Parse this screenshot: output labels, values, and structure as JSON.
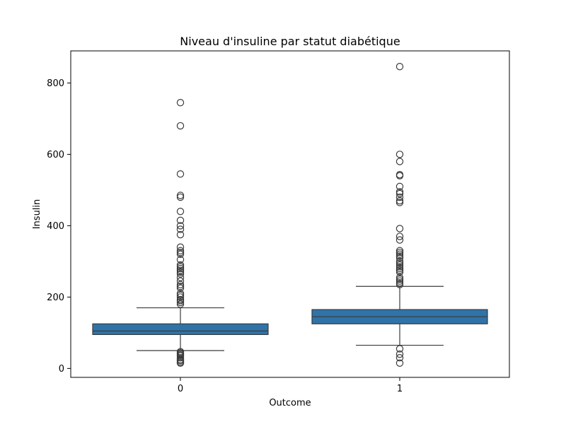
{
  "chart_data": {
    "type": "boxplot",
    "title": "Niveau d'insuline par statut diabétique",
    "xlabel": "Outcome",
    "ylabel": "Insulin",
    "categories": [
      "0",
      "1"
    ],
    "ylim": [
      -25,
      890
    ],
    "yticks": [
      0,
      200,
      400,
      600,
      800
    ],
    "box_color": "#2f73a8",
    "edge_color": "#3b3b3b",
    "boxes": [
      {
        "category": "0",
        "whisker_low": 50,
        "q1": 95,
        "median": 105,
        "q3": 125,
        "whisker_high": 170,
        "outliers": [
          15,
          18,
          22,
          25,
          30,
          35,
          38,
          41,
          44,
          47,
          180,
          185,
          190,
          193,
          200,
          205,
          210,
          225,
          230,
          235,
          245,
          255,
          265,
          270,
          275,
          280,
          285,
          290,
          305,
          320,
          325,
          330,
          340,
          375,
          390,
          400,
          415,
          440,
          480,
          485,
          545,
          680,
          745
        ]
      },
      {
        "category": "1",
        "whisker_low": 65,
        "q1": 125,
        "median": 145,
        "q3": 165,
        "whisker_high": 230,
        "outliers": [
          15,
          30,
          40,
          55,
          235,
          240,
          245,
          250,
          255,
          270,
          275,
          280,
          285,
          290,
          295,
          300,
          310,
          315,
          320,
          325,
          330,
          360,
          370,
          392,
          465,
          470,
          480,
          490,
          495,
          510,
          540,
          543,
          580,
          600,
          846
        ]
      }
    ]
  }
}
